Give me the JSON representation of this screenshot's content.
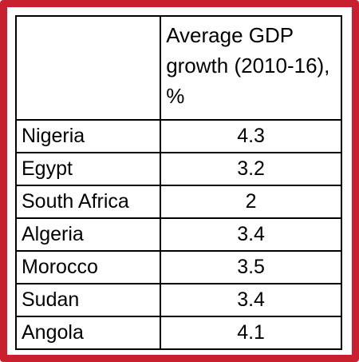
{
  "table": {
    "header": {
      "corner": "",
      "value_column": "Average GDP growth (2010-16), %"
    },
    "rows": [
      {
        "country": "Nigeria",
        "value": "4.3"
      },
      {
        "country": "Egypt",
        "value": "3.2"
      },
      {
        "country": "South Africa",
        "value": "2"
      },
      {
        "country": "Algeria",
        "value": "3.4"
      },
      {
        "country": "Morocco",
        "value": "3.5"
      },
      {
        "country": "Sudan",
        "value": "3.4"
      },
      {
        "country": "Angola",
        "value": "4.1"
      }
    ]
  },
  "colors": {
    "frame": "#c8202f",
    "grid": "#000000",
    "text": "#000000",
    "background": "#ffffff"
  }
}
